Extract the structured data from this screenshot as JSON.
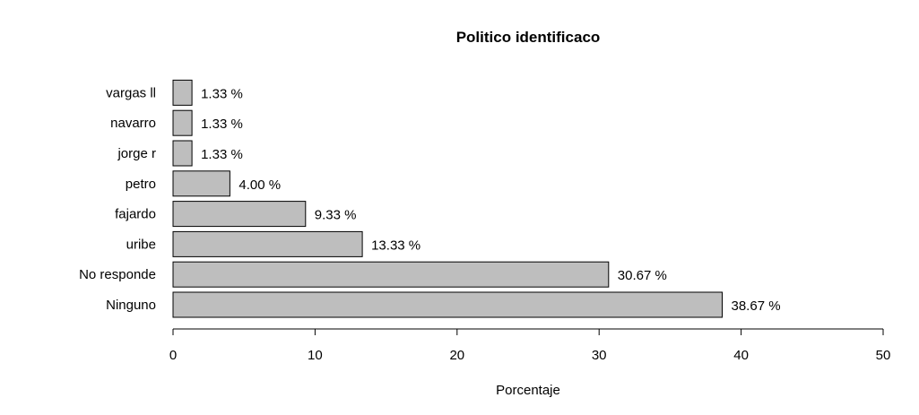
{
  "chart_data": {
    "type": "bar",
    "orientation": "horizontal",
    "title": "Politico identificaco",
    "xlabel": "Porcentaje",
    "ylabel": "",
    "xlim": [
      0,
      50
    ],
    "xticks": [
      0,
      10,
      20,
      30,
      40,
      50
    ],
    "categories": [
      "Ninguno",
      "No responde",
      "uribe",
      "fajardo",
      "petro",
      "jorge r",
      "navarro",
      "vargas ll"
    ],
    "values": [
      38.67,
      30.67,
      13.33,
      9.33,
      4.0,
      1.33,
      1.33,
      1.33
    ],
    "data_labels": [
      "38.67 %",
      "30.67 %",
      "13.33 %",
      "9.33 %",
      "4.00 %",
      "1.33 %",
      "1.33 %",
      "1.33 %"
    ],
    "bar_color": "#bebebe",
    "bar_border_color": "#000000",
    "grid": false
  }
}
